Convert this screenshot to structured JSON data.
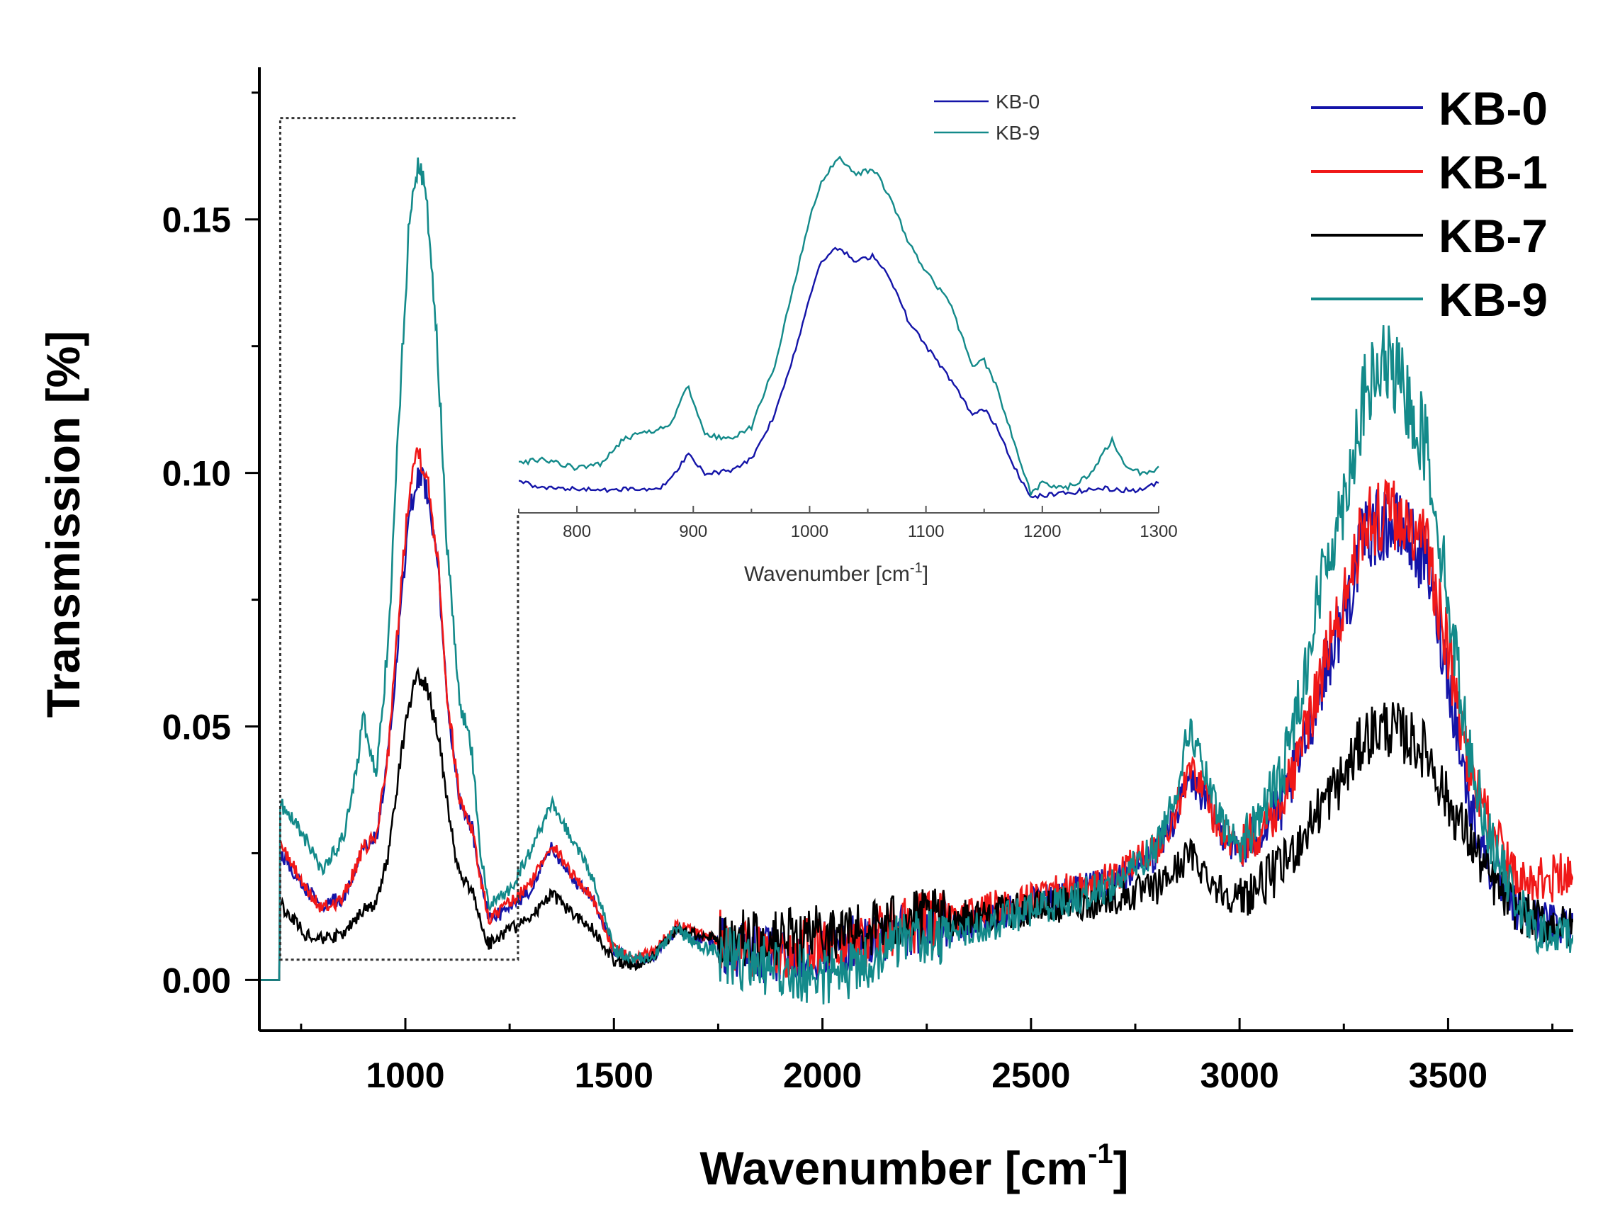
{
  "colors": {
    "KB-0": "#1414a8",
    "KB-1": "#f01818",
    "KB-7": "#000000",
    "KB-9": "#138a8a"
  },
  "chart_data": [
    {
      "id": "main",
      "type": "line",
      "title": "",
      "xlabel": "Wavenumber [cm",
      "xlabel_sup": "-1",
      "xlabel_end": "]",
      "ylabel": "Transmission [%]",
      "xlim": [
        650,
        3800
      ],
      "ylim": [
        -0.01,
        0.18
      ],
      "xticks": [
        1000,
        1500,
        2000,
        2500,
        3000,
        3500
      ],
      "xtick_labels": [
        "1000",
        "1500",
        "2000",
        "2500",
        "3000",
        "3500"
      ],
      "yticks": [
        0.0,
        0.05,
        0.1,
        0.15
      ],
      "ytick_labels": [
        "0.00",
        "0.05",
        "0.10",
        "0.15"
      ],
      "legend_position": "top-right",
      "zoom_box": {
        "x": [
          700,
          1270
        ],
        "y": [
          0.004,
          0.17
        ]
      },
      "series": [
        {
          "name": "KB-0",
          "x": [
            650,
            700,
            760,
            800,
            850,
            880,
            900,
            930,
            960,
            990,
            1010,
            1030,
            1050,
            1080,
            1100,
            1130,
            1160,
            1180,
            1200,
            1250,
            1300,
            1350,
            1400,
            1450,
            1500,
            1550,
            1600,
            1650,
            1700,
            1800,
            1900,
            2000,
            2100,
            2200,
            2300,
            2400,
            2500,
            2600,
            2700,
            2800,
            2850,
            2880,
            2900,
            2950,
            3000,
            3100,
            3150,
            3200,
            3250,
            3300,
            3350,
            3400,
            3450,
            3500,
            3550,
            3600,
            3650,
            3700,
            3750,
            3800
          ],
          "y": [
            0.0,
            0.025,
            0.018,
            0.015,
            0.016,
            0.022,
            0.026,
            0.028,
            0.045,
            0.075,
            0.092,
            0.1,
            0.097,
            0.08,
            0.055,
            0.035,
            0.03,
            0.02,
            0.012,
            0.014,
            0.018,
            0.026,
            0.02,
            0.016,
            0.006,
            0.004,
            0.005,
            0.01,
            0.008,
            0.006,
            0.004,
            0.006,
            0.007,
            0.01,
            0.01,
            0.012,
            0.015,
            0.017,
            0.019,
            0.025,
            0.033,
            0.04,
            0.038,
            0.03,
            0.025,
            0.034,
            0.045,
            0.06,
            0.072,
            0.088,
            0.09,
            0.088,
            0.082,
            0.06,
            0.035,
            0.022,
            0.015,
            0.012,
            0.011,
            0.012
          ]
        },
        {
          "name": "KB-1",
          "x": [
            650,
            700,
            760,
            800,
            850,
            880,
            900,
            930,
            960,
            990,
            1010,
            1030,
            1050,
            1080,
            1100,
            1130,
            1160,
            1180,
            1200,
            1250,
            1300,
            1350,
            1400,
            1450,
            1500,
            1550,
            1600,
            1650,
            1700,
            1800,
            1900,
            2000,
            2100,
            2200,
            2300,
            2400,
            2500,
            2600,
            2700,
            2800,
            2850,
            2880,
            2900,
            2950,
            3000,
            3100,
            3150,
            3200,
            3250,
            3300,
            3350,
            3400,
            3450,
            3500,
            3550,
            3600,
            3650,
            3700,
            3750,
            3800
          ],
          "y": [
            0.0,
            0.027,
            0.018,
            0.014,
            0.016,
            0.022,
            0.026,
            0.028,
            0.046,
            0.078,
            0.098,
            0.105,
            0.1,
            0.082,
            0.056,
            0.036,
            0.03,
            0.02,
            0.012,
            0.015,
            0.019,
            0.027,
            0.021,
            0.016,
            0.006,
            0.004,
            0.006,
            0.011,
            0.009,
            0.007,
            0.005,
            0.007,
            0.008,
            0.011,
            0.012,
            0.014,
            0.016,
            0.018,
            0.02,
            0.026,
            0.034,
            0.042,
            0.04,
            0.03,
            0.026,
            0.035,
            0.046,
            0.062,
            0.075,
            0.09,
            0.092,
            0.09,
            0.085,
            0.065,
            0.042,
            0.03,
            0.022,
            0.02,
            0.02,
            0.022
          ]
        },
        {
          "name": "KB-7",
          "x": [
            650,
            700,
            760,
            800,
            850,
            880,
            900,
            930,
            960,
            990,
            1010,
            1030,
            1050,
            1080,
            1100,
            1130,
            1160,
            1180,
            1200,
            1250,
            1300,
            1350,
            1400,
            1450,
            1500,
            1550,
            1600,
            1650,
            1700,
            1800,
            1900,
            2000,
            2100,
            2200,
            2300,
            2400,
            2500,
            2600,
            2700,
            2800,
            2850,
            2880,
            2900,
            2950,
            3000,
            3100,
            3150,
            3200,
            3250,
            3300,
            3350,
            3400,
            3450,
            3500,
            3550,
            3600,
            3650,
            3700,
            3750,
            3800
          ],
          "y": [
            0.0,
            0.015,
            0.009,
            0.008,
            0.009,
            0.012,
            0.014,
            0.015,
            0.025,
            0.045,
            0.055,
            0.06,
            0.058,
            0.048,
            0.035,
            0.02,
            0.018,
            0.012,
            0.007,
            0.01,
            0.012,
            0.017,
            0.013,
            0.01,
            0.004,
            0.003,
            0.005,
            0.01,
            0.009,
            0.008,
            0.008,
            0.009,
            0.01,
            0.012,
            0.012,
            0.013,
            0.014,
            0.015,
            0.016,
            0.018,
            0.022,
            0.025,
            0.023,
            0.018,
            0.016,
            0.022,
            0.028,
            0.035,
            0.04,
            0.048,
            0.05,
            0.048,
            0.045,
            0.035,
            0.028,
            0.02,
            0.015,
            0.012,
            0.011,
            0.01
          ]
        },
        {
          "name": "KB-9",
          "x": [
            650,
            700,
            760,
            800,
            850,
            880,
            900,
            930,
            960,
            990,
            1010,
            1030,
            1050,
            1080,
            1100,
            1130,
            1160,
            1180,
            1200,
            1250,
            1300,
            1350,
            1400,
            1450,
            1500,
            1550,
            1600,
            1650,
            1700,
            1800,
            1900,
            2000,
            2100,
            2200,
            2300,
            2400,
            2500,
            2600,
            2700,
            2800,
            2850,
            2880,
            2900,
            2950,
            3000,
            3100,
            3150,
            3200,
            3250,
            3300,
            3350,
            3400,
            3450,
            3500,
            3550,
            3600,
            3650,
            3700,
            3750,
            3800
          ],
          "y": [
            0.0,
            0.035,
            0.028,
            0.022,
            0.028,
            0.04,
            0.052,
            0.04,
            0.068,
            0.12,
            0.15,
            0.162,
            0.155,
            0.12,
            0.085,
            0.055,
            0.045,
            0.025,
            0.015,
            0.018,
            0.025,
            0.035,
            0.028,
            0.02,
            0.006,
            0.004,
            0.005,
            0.01,
            0.007,
            0.004,
            0.002,
            0.0,
            0.003,
            0.008,
            0.009,
            0.011,
            0.014,
            0.016,
            0.019,
            0.026,
            0.038,
            0.05,
            0.045,
            0.032,
            0.026,
            0.04,
            0.058,
            0.08,
            0.095,
            0.115,
            0.122,
            0.115,
            0.105,
            0.075,
            0.045,
            0.028,
            0.018,
            0.01,
            0.008,
            0.01
          ]
        }
      ]
    },
    {
      "id": "inset",
      "type": "line",
      "title": "",
      "xlabel": "Wavenumber [cm",
      "xlabel_sup": "-1",
      "xlabel_end": "]",
      "ylabel": "",
      "xlim": [
        750,
        1300
      ],
      "ylim": [
        0.0,
        0.18
      ],
      "xticks": [
        800,
        900,
        1000,
        1100,
        1200,
        1300
      ],
      "xtick_labels": [
        "800",
        "900",
        "1000",
        "1100",
        "1200",
        "1300"
      ],
      "legend_position": "top-right",
      "series": [
        {
          "name": "KB-0",
          "x": [
            750,
            770,
            800,
            820,
            850,
            870,
            880,
            895,
            910,
            930,
            950,
            970,
            990,
            1000,
            1010,
            1025,
            1040,
            1055,
            1070,
            1085,
            1100,
            1120,
            1140,
            1150,
            1160,
            1175,
            1190,
            1200,
            1220,
            1250,
            1280,
            1300
          ],
          "y": [
            0.013,
            0.01,
            0.01,
            0.009,
            0.01,
            0.01,
            0.013,
            0.024,
            0.016,
            0.017,
            0.022,
            0.04,
            0.07,
            0.088,
            0.103,
            0.108,
            0.102,
            0.105,
            0.095,
            0.078,
            0.068,
            0.055,
            0.04,
            0.042,
            0.036,
            0.02,
            0.006,
            0.007,
            0.008,
            0.01,
            0.009,
            0.012
          ]
        },
        {
          "name": "KB-9",
          "x": [
            750,
            770,
            800,
            820,
            840,
            860,
            880,
            895,
            910,
            930,
            950,
            970,
            990,
            1000,
            1010,
            1025,
            1040,
            1055,
            1070,
            1085,
            1100,
            1120,
            1140,
            1150,
            1160,
            1175,
            1190,
            1200,
            1220,
            1240,
            1260,
            1270,
            1285,
            1300
          ],
          "y": [
            0.02,
            0.022,
            0.018,
            0.02,
            0.03,
            0.033,
            0.035,
            0.052,
            0.032,
            0.03,
            0.035,
            0.06,
            0.1,
            0.12,
            0.135,
            0.145,
            0.138,
            0.14,
            0.128,
            0.11,
            0.098,
            0.086,
            0.06,
            0.062,
            0.052,
            0.03,
            0.008,
            0.012,
            0.01,
            0.015,
            0.03,
            0.02,
            0.016,
            0.018
          ]
        }
      ]
    }
  ],
  "legend": {
    "main": [
      "KB-0",
      "KB-1",
      "KB-7",
      "KB-9"
    ],
    "inset": [
      "KB-0",
      "KB-9"
    ]
  }
}
